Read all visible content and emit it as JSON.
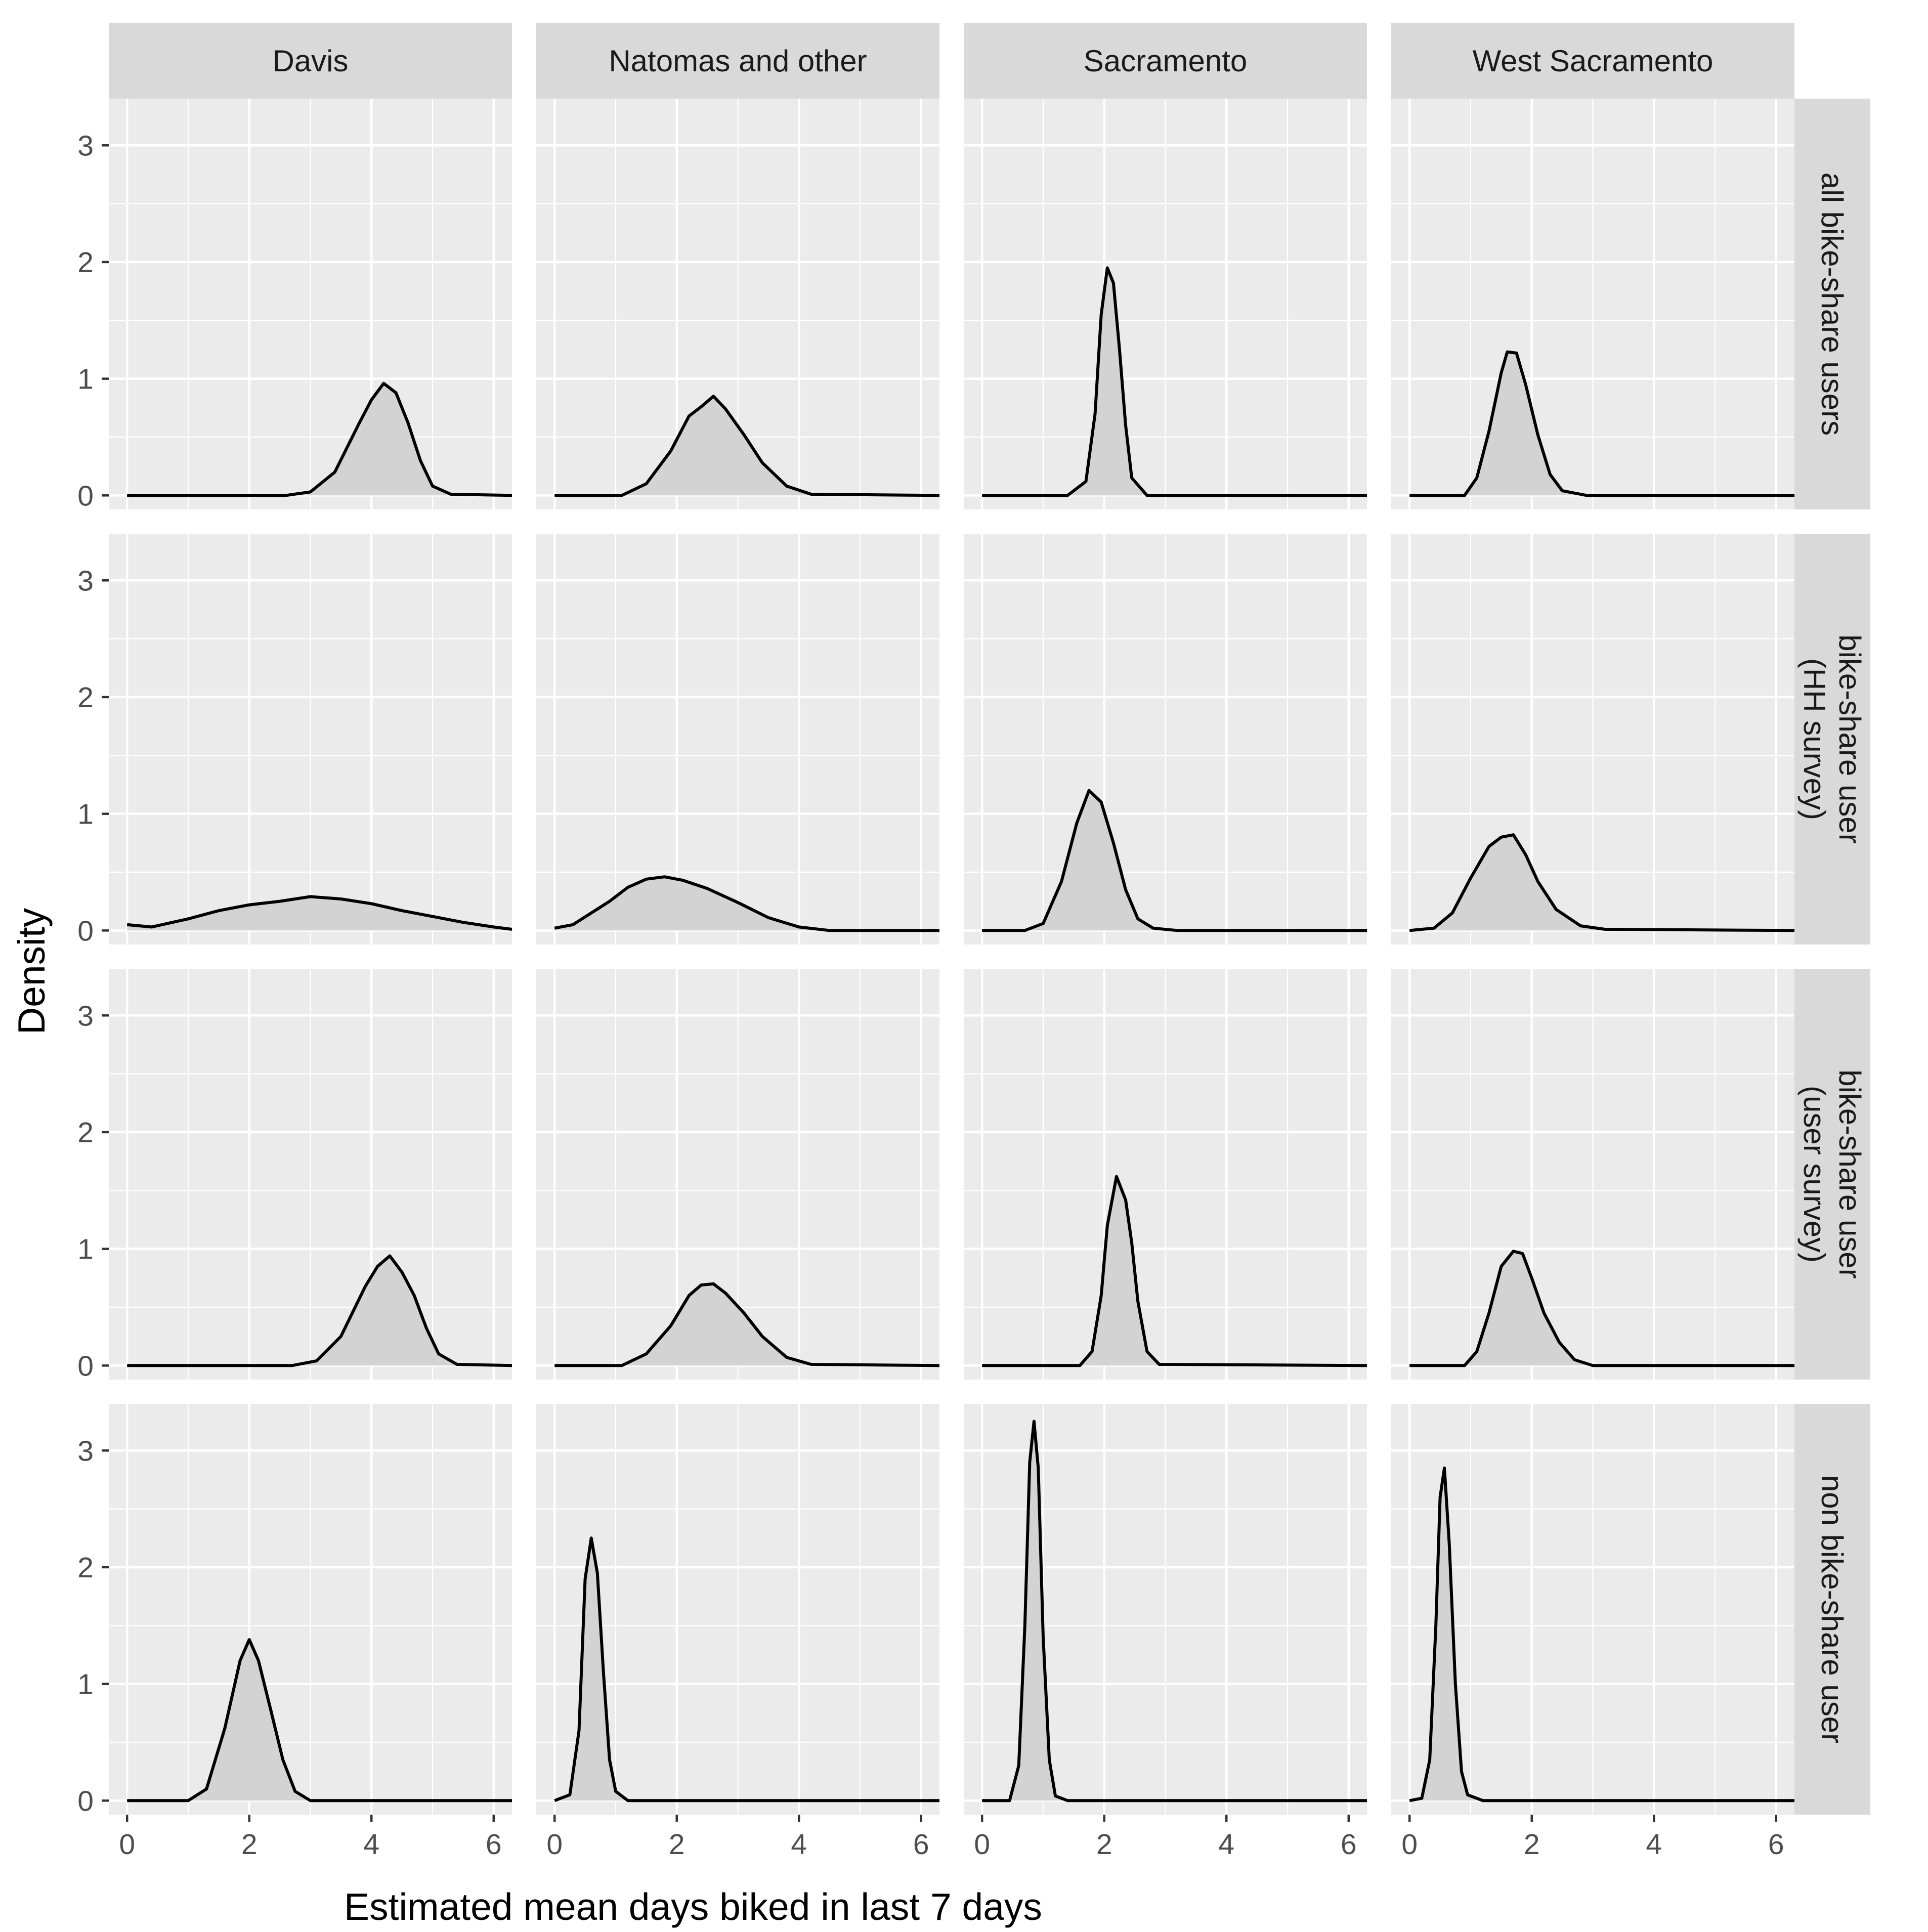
{
  "chart_data": {
    "type": "area",
    "title": "",
    "xlabel": "Estimated mean days biked in last 7 days",
    "ylabel": "Density",
    "xlim": [
      -0.3,
      6.3
    ],
    "ylim": [
      -0.12,
      3.4
    ],
    "x_ticks": [
      0,
      2,
      4,
      6
    ],
    "y_ticks": [
      0,
      1,
      2,
      3
    ],
    "columns": [
      "Davis",
      "Natomas and other",
      "Sacramento",
      "West Sacramento"
    ],
    "rows": [
      [
        "all bike-share users"
      ],
      [
        "bike-share user",
        "(HH survey)"
      ],
      [
        "bike-share user",
        "(user survey)"
      ],
      [
        "non bike-share user"
      ]
    ],
    "panels": [
      {
        "row": 0,
        "col": 0,
        "x": [
          0,
          2.6,
          3.0,
          3.4,
          3.8,
          4.0,
          4.2,
          4.4,
          4.6,
          4.8,
          5.0,
          5.3,
          6.3
        ],
        "density": [
          0,
          0,
          0.03,
          0.2,
          0.62,
          0.82,
          0.96,
          0.88,
          0.62,
          0.3,
          0.08,
          0.01,
          0
        ]
      },
      {
        "row": 0,
        "col": 1,
        "x": [
          0,
          1.1,
          1.5,
          1.9,
          2.2,
          2.4,
          2.6,
          2.8,
          3.1,
          3.4,
          3.8,
          4.2,
          6.3
        ],
        "density": [
          0,
          0,
          0.1,
          0.38,
          0.68,
          0.76,
          0.85,
          0.74,
          0.52,
          0.28,
          0.08,
          0.01,
          0
        ]
      },
      {
        "row": 0,
        "col": 2,
        "x": [
          0,
          1.4,
          1.7,
          1.85,
          1.95,
          2.05,
          2.15,
          2.25,
          2.35,
          2.45,
          2.7,
          6.3
        ],
        "density": [
          0,
          0,
          0.12,
          0.7,
          1.55,
          1.95,
          1.82,
          1.25,
          0.6,
          0.15,
          0,
          0
        ]
      },
      {
        "row": 0,
        "col": 3,
        "x": [
          0,
          0.9,
          1.1,
          1.3,
          1.5,
          1.6,
          1.75,
          1.9,
          2.1,
          2.3,
          2.5,
          2.9,
          6.3
        ],
        "density": [
          0,
          0,
          0.15,
          0.55,
          1.05,
          1.23,
          1.22,
          0.95,
          0.52,
          0.18,
          0.04,
          0,
          0
        ]
      },
      {
        "row": 1,
        "col": 0,
        "x": [
          0,
          0.4,
          1.0,
          1.5,
          2.0,
          2.5,
          3.0,
          3.5,
          4.0,
          4.5,
          5.0,
          5.5,
          6.0,
          6.3
        ],
        "density": [
          0.05,
          0.03,
          0.1,
          0.17,
          0.22,
          0.25,
          0.29,
          0.27,
          0.23,
          0.17,
          0.12,
          0.07,
          0.03,
          0.01
        ]
      },
      {
        "row": 1,
        "col": 1,
        "x": [
          0,
          0.3,
          0.6,
          0.9,
          1.2,
          1.5,
          1.8,
          2.1,
          2.5,
          3.0,
          3.5,
          4.0,
          4.5,
          6.3
        ],
        "density": [
          0.02,
          0.05,
          0.15,
          0.25,
          0.37,
          0.44,
          0.46,
          0.43,
          0.36,
          0.24,
          0.11,
          0.03,
          0,
          0
        ]
      },
      {
        "row": 1,
        "col": 2,
        "x": [
          0,
          0.7,
          1.0,
          1.3,
          1.55,
          1.75,
          1.95,
          2.15,
          2.35,
          2.55,
          2.8,
          3.2,
          6.3
        ],
        "density": [
          0,
          0,
          0.06,
          0.42,
          0.92,
          1.2,
          1.1,
          0.75,
          0.35,
          0.1,
          0.02,
          0,
          0
        ]
      },
      {
        "row": 1,
        "col": 3,
        "x": [
          0,
          0.4,
          0.7,
          1.0,
          1.3,
          1.5,
          1.7,
          1.9,
          2.1,
          2.4,
          2.8,
          3.2,
          6.3
        ],
        "density": [
          0,
          0.02,
          0.15,
          0.45,
          0.72,
          0.8,
          0.82,
          0.65,
          0.42,
          0.18,
          0.04,
          0.01,
          0
        ]
      },
      {
        "row": 2,
        "col": 0,
        "x": [
          0,
          2.7,
          3.1,
          3.5,
          3.9,
          4.1,
          4.3,
          4.5,
          4.7,
          4.9,
          5.1,
          5.4,
          6.3
        ],
        "density": [
          0,
          0,
          0.04,
          0.25,
          0.68,
          0.85,
          0.94,
          0.8,
          0.6,
          0.32,
          0.1,
          0.01,
          0
        ]
      },
      {
        "row": 2,
        "col": 1,
        "x": [
          0,
          1.1,
          1.5,
          1.9,
          2.2,
          2.4,
          2.6,
          2.8,
          3.1,
          3.4,
          3.8,
          4.2,
          6.3
        ],
        "density": [
          0,
          0,
          0.1,
          0.34,
          0.6,
          0.69,
          0.7,
          0.62,
          0.45,
          0.25,
          0.07,
          0.01,
          0
        ]
      },
      {
        "row": 2,
        "col": 2,
        "x": [
          0,
          1.6,
          1.8,
          1.95,
          2.05,
          2.2,
          2.35,
          2.45,
          2.55,
          2.7,
          2.9,
          6.3
        ],
        "density": [
          0,
          0,
          0.12,
          0.6,
          1.2,
          1.62,
          1.42,
          1.05,
          0.55,
          0.12,
          0.01,
          0
        ]
      },
      {
        "row": 2,
        "col": 3,
        "x": [
          0,
          0.9,
          1.1,
          1.3,
          1.5,
          1.7,
          1.85,
          2.0,
          2.2,
          2.45,
          2.7,
          3.0,
          6.3
        ],
        "density": [
          0,
          0,
          0.12,
          0.45,
          0.85,
          0.98,
          0.96,
          0.75,
          0.45,
          0.2,
          0.05,
          0,
          0
        ]
      },
      {
        "row": 3,
        "col": 0,
        "x": [
          0,
          1.0,
          1.3,
          1.6,
          1.85,
          2.0,
          2.15,
          2.35,
          2.55,
          2.75,
          3.0,
          6.3
        ],
        "density": [
          0,
          0,
          0.1,
          0.62,
          1.2,
          1.38,
          1.2,
          0.78,
          0.35,
          0.08,
          0,
          0
        ]
      },
      {
        "row": 3,
        "col": 1,
        "x": [
          0,
          0.25,
          0.4,
          0.5,
          0.6,
          0.7,
          0.8,
          0.9,
          1.0,
          1.2,
          6.3
        ],
        "density": [
          0,
          0.05,
          0.6,
          1.9,
          2.25,
          1.95,
          1.1,
          0.35,
          0.08,
          0,
          0
        ]
      },
      {
        "row": 3,
        "col": 2,
        "x": [
          0,
          0.45,
          0.6,
          0.7,
          0.78,
          0.85,
          0.92,
          1.0,
          1.1,
          1.2,
          1.4,
          6.3
        ],
        "density": [
          0,
          0,
          0.3,
          1.5,
          2.9,
          3.25,
          2.85,
          1.4,
          0.35,
          0.04,
          0,
          0
        ]
      },
      {
        "row": 3,
        "col": 3,
        "x": [
          0,
          0.2,
          0.33,
          0.43,
          0.5,
          0.57,
          0.65,
          0.75,
          0.85,
          0.95,
          1.2,
          6.3
        ],
        "density": [
          0,
          0.02,
          0.35,
          1.5,
          2.6,
          2.85,
          2.2,
          1.0,
          0.25,
          0.05,
          0,
          0
        ]
      }
    ]
  }
}
